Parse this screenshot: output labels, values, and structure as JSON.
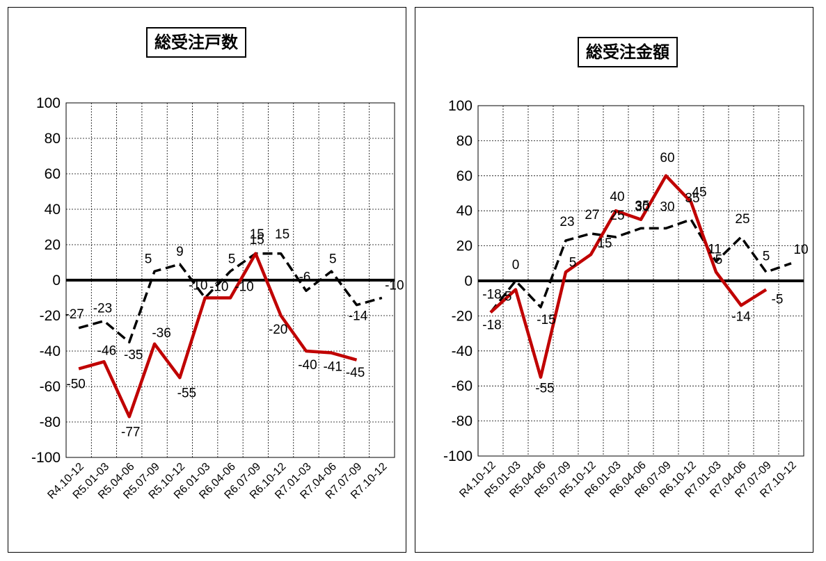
{
  "chart_data": [
    {
      "type": "line",
      "title": "総受注戸数",
      "ylim": [
        -100,
        100
      ],
      "yticks": [
        "100",
        "80",
        "60",
        "40",
        "20",
        "0",
        "-20",
        "-40",
        "-60",
        "-80",
        "-100"
      ],
      "categories": [
        "R4.10-12",
        "R5.01-03",
        "R5.04-06",
        "R5.07-09",
        "R5.10-12",
        "R6.01-03",
        "R6.04-06",
        "R6.07-09",
        "R6.10-12",
        "R7.01-03",
        "R7.04-06",
        "R7.07-09",
        "R7.10-12"
      ],
      "grid": true,
      "series": [
        {
          "style": "dashed",
          "color": "#000000",
          "values": [
            -27,
            -23,
            -35,
            5,
            9,
            -10,
            5,
            15,
            15,
            -6,
            5,
            -14,
            -10
          ],
          "labels": [
            "-27",
            "-23",
            "-35",
            "5",
            "9",
            "-10",
            "5",
            "15",
            "15",
            "-6",
            "5",
            "-14",
            "-10"
          ]
        },
        {
          "style": "solid",
          "color": "#c00000",
          "values": [
            -50,
            -46,
            -77,
            -36,
            -55,
            -10,
            -10,
            15,
            -20,
            -40,
            -41,
            -45,
            null
          ],
          "labels": [
            "-50",
            "-46",
            "-77",
            "-36",
            "-55",
            "-10",
            "-10",
            "15",
            "-20",
            "-40",
            "-41",
            "-45",
            ""
          ]
        }
      ]
    },
    {
      "type": "line",
      "title": "総受注金額",
      "ylim": [
        -100,
        100
      ],
      "yticks": [
        "100",
        "80",
        "60",
        "40",
        "20",
        "0",
        "-20",
        "-40",
        "-60",
        "-80",
        "-100"
      ],
      "categories": [
        "R4.10-12",
        "R5.01-03",
        "R5.04-06",
        "R5.07-09",
        "R5.10-12",
        "R6.01-03",
        "R6.04-06",
        "R6.07-09",
        "R6.10-12",
        "R7.01-03",
        "R7.04-06",
        "R7.07-09",
        "R7.10-12"
      ],
      "grid": true,
      "series": [
        {
          "style": "dashed",
          "color": "#000000",
          "values": [
            -18,
            0,
            -15,
            23,
            27,
            25,
            30,
            30,
            35,
            11,
            25,
            5,
            10
          ],
          "labels": [
            "-18",
            "0",
            "-15",
            "23",
            "27",
            "25",
            "30",
            "30",
            "35",
            "11",
            "25",
            "5",
            "10"
          ]
        },
        {
          "style": "solid",
          "color": "#c00000",
          "values": [
            -18,
            -5,
            -55,
            5,
            15,
            40,
            35,
            60,
            45,
            5,
            -14,
            -5,
            null
          ],
          "labels": [
            "-18",
            "-5",
            "-55",
            "5",
            "15",
            "40",
            "35",
            "60",
            "45",
            "5",
            "-14",
            "-5",
            ""
          ]
        }
      ]
    }
  ]
}
